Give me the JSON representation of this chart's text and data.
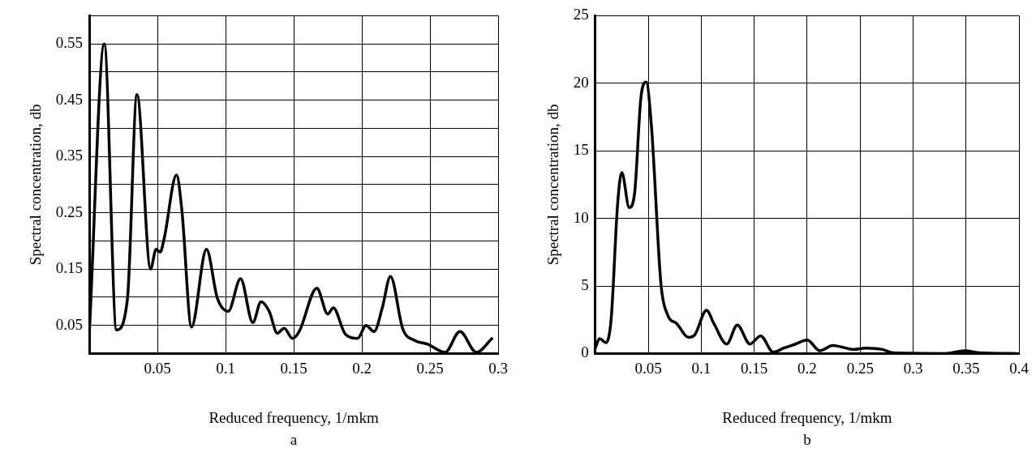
{
  "chart_data": [
    {
      "type": "line",
      "xlabel": "Reduced frequency, 1/mkm",
      "ylabel": "Spectral concentration, db",
      "color": "#000000",
      "grid": true,
      "annotations": [
        "a"
      ],
      "x": [
        0,
        0.011,
        0.02,
        0.028,
        0.035,
        0.045,
        0.049,
        0.052,
        0.055,
        0.064,
        0.068,
        0.075,
        0.086,
        0.094,
        0.102,
        0.111,
        0.12,
        0.126,
        0.132,
        0.138,
        0.143,
        0.149,
        0.154,
        0.167,
        0.175,
        0.179,
        0.188,
        0.197,
        0.203,
        0.209,
        0.215,
        0.221,
        0.23,
        0.239,
        0.248,
        0.261,
        0.272,
        0.284,
        0.296
      ],
      "values": [
        0.034,
        0.55,
        0.042,
        0.097,
        0.46,
        0.15,
        0.185,
        0.18,
        0.205,
        0.317,
        0.253,
        0.047,
        0.185,
        0.098,
        0.075,
        0.133,
        0.055,
        0.092,
        0.075,
        0.036,
        0.045,
        0.027,
        0.039,
        0.116,
        0.07,
        0.081,
        0.034,
        0.027,
        0.05,
        0.039,
        0.081,
        0.137,
        0.044,
        0.023,
        0.017,
        0.002,
        0.039,
        0.002,
        0.028
      ],
      "xlim": [
        0,
        0.3
      ],
      "xticks": [
        {
          "value": 0,
          "label": null
        },
        0.05,
        0.1,
        0.15,
        0.2,
        0.25,
        0.3
      ],
      "ylim": [
        0,
        0.6
      ],
      "yticks": [
        {
          "value": 0,
          "label": null
        },
        0.05,
        {
          "value": 0.1,
          "label": null
        },
        0.15,
        {
          "value": 0.2,
          "label": null
        },
        0.25,
        {
          "value": 0.3,
          "label": null
        },
        0.35,
        {
          "value": 0.4,
          "label": null
        },
        0.45,
        {
          "value": 0.5,
          "label": null
        },
        0.55,
        {
          "value": 0.6,
          "label": null
        }
      ]
    },
    {
      "type": "line",
      "xlabel": "Reduced frequency, 1/mkm",
      "ylabel": "Spectral concentration, db",
      "color": "#000000",
      "grid": true,
      "annotations": [
        "b"
      ],
      "x": [
        0,
        0.004,
        0.01,
        0.015,
        0.021,
        0.025,
        0.032,
        0.037,
        0.043,
        0.048,
        0.053,
        0.062,
        0.068,
        0.077,
        0.088,
        0.094,
        0.105,
        0.112,
        0.124,
        0.134,
        0.146,
        0.156,
        0.168,
        0.178,
        0.189,
        0.2,
        0.212,
        0.224,
        0.244,
        0.255,
        0.271,
        0.281,
        0.33,
        0.349,
        0.362,
        0.398
      ],
      "values": [
        0.4,
        1.1,
        0.8,
        2.6,
        11,
        13.4,
        10.8,
        11.8,
        18.9,
        20.1,
        16.8,
        5.1,
        2.9,
        2.2,
        1.2,
        1.4,
        3.2,
        2.2,
        0.7,
        2.1,
        0.7,
        1.3,
        0.1,
        0.4,
        0.7,
        1.0,
        0.2,
        0.6,
        0.3,
        0.4,
        0.3,
        0.05,
        0,
        0.2,
        0.05,
        0
      ],
      "xlim": [
        0,
        0.4
      ],
      "xticks": [
        {
          "value": 0,
          "label": null
        },
        0.05,
        0.1,
        0.15,
        0.2,
        0.25,
        0.3,
        0.35,
        0.4
      ],
      "ylim": [
        0,
        25
      ],
      "yticks": [
        0,
        5,
        10,
        15,
        20,
        25
      ]
    }
  ]
}
